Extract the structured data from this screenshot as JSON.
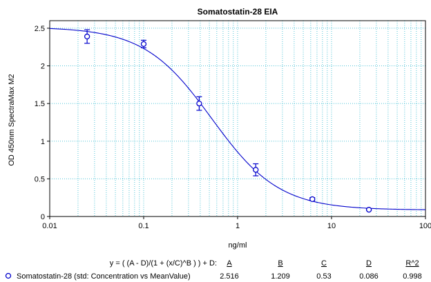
{
  "chart_data": {
    "type": "scatter",
    "title": "Somatostatin-28 EIA",
    "xlabel": "ng/ml",
    "ylabel": "OD 450nm SpectraMax M2",
    "x_scale": "log",
    "xlim": [
      0.01,
      100
    ],
    "ylim": [
      0,
      2.6
    ],
    "grid": true,
    "x_tick_labels": [
      "0.01",
      "0.1",
      "1",
      "10",
      "100"
    ],
    "y_tick_labels": [
      "0",
      "0.5",
      "1",
      "1.5",
      "2",
      "2.5"
    ],
    "x_ticks": [
      0.01,
      0.1,
      1,
      10,
      100
    ],
    "y_ticks": [
      0,
      0.5,
      1,
      1.5,
      2,
      2.5
    ],
    "series": [
      {
        "name": "Somatostatin-28 (std: Concentration vs MeanValue)",
        "color": "#0000cc",
        "marker": "open-circle",
        "points": [
          {
            "x": 0.025,
            "y": 2.39,
            "err": 0.09
          },
          {
            "x": 0.1,
            "y": 2.29,
            "err": 0.05
          },
          {
            "x": 0.39,
            "y": 1.5,
            "err": 0.09
          },
          {
            "x": 1.56,
            "y": 0.62,
            "err": 0.08
          },
          {
            "x": 6.25,
            "y": 0.23,
            "err": 0.02
          },
          {
            "x": 25,
            "y": 0.09,
            "err": 0.01
          }
        ]
      }
    ],
    "fit": {
      "equation": "y = ( (A - D)/(1 + (x/C)^B ) ) + D:",
      "A": 2.516,
      "B": 1.209,
      "C": 0.53,
      "D": 0.086,
      "R2": 0.998,
      "color": "#0000cc"
    },
    "legend": {
      "headers": [
        "A",
        "B",
        "C",
        "D",
        "R^2"
      ],
      "values": [
        "2.516",
        "1.209",
        "0.53",
        "0.086",
        "0.998"
      ],
      "placement": "bottom"
    }
  }
}
